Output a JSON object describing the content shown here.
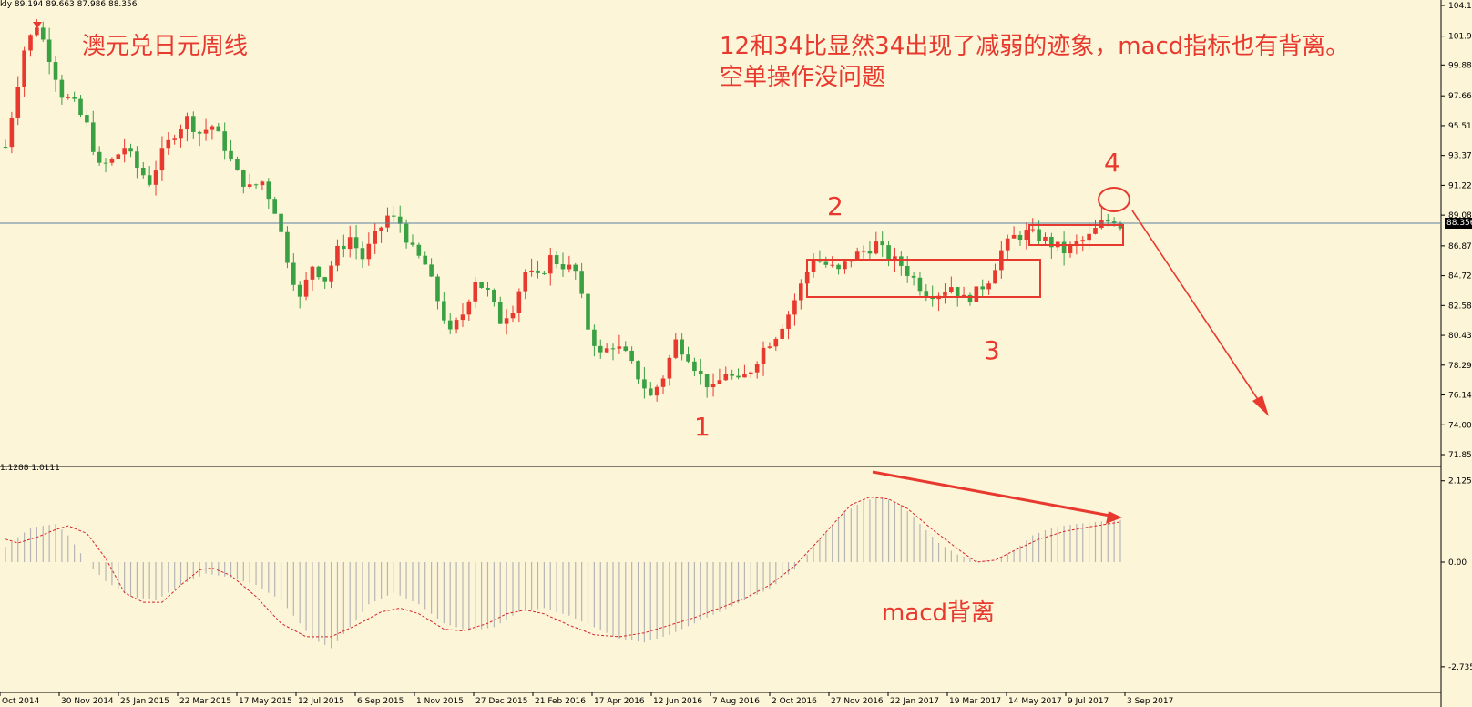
{
  "header": {
    "symbol_suffix": "kly",
    "ohlc": "89.194 89.663 87.986 88.356"
  },
  "annotations": {
    "title": "澳元兑日元周线",
    "note_line1": "12和34比显然34出现了减弱的迹象，macd指标也有背离。",
    "note_line2": "空单操作没问题",
    "macd_label": "macd背离",
    "waves": [
      "1",
      "2",
      "3",
      "4"
    ]
  },
  "macd_header": "1.1288 1.0111",
  "current_price_label": "88.356",
  "colors": {
    "background": "#fdf5d8",
    "up": "#e8392f",
    "down": "#3aa044",
    "annotation": "#e8392f",
    "macd_hist": "#b5b5b5",
    "signal": "#d6262a",
    "price_line": "#5a7f9a"
  },
  "chart_data": {
    "type": "candlestick",
    "ylim": [
      71.855,
      104.16
    ],
    "price_ticks": [
      "104.16",
      "101.955",
      "99.880",
      "97.660",
      "95.515",
      "93.370",
      "91.225",
      "89.080",
      "86.870",
      "84.725",
      "82.580",
      "80.435",
      "78.290",
      "76.145",
      "74.000",
      "71.855"
    ],
    "x_ticks": [
      "Oct 2014",
      "30 Nov 2014",
      "25 Jan 2015",
      "22 Mar 2015",
      "17 May 2015",
      "12 Jul 2015",
      "6 Sep 2015",
      "1 Nov 2015",
      "27 Dec 2015",
      "21 Feb 2016",
      "17 Apr 2016",
      "12 Jun 2016",
      "7 Aug 2016",
      "2 Oct 2016",
      "27 Nov 2016",
      "22 Jan 2017",
      "19 Mar 2017",
      "14 May 2017",
      "9 Jul 2017",
      "3 Sep 2017"
    ],
    "current_price": 88.356,
    "close_path": [
      [
        0,
        94.0
      ],
      [
        3,
        101.0
      ],
      [
        5,
        102.8
      ],
      [
        7,
        100.5
      ],
      [
        9,
        97.8
      ],
      [
        11,
        97.0
      ],
      [
        13,
        95.5
      ],
      [
        15,
        92.5
      ],
      [
        17,
        93.0
      ],
      [
        19,
        94.0
      ],
      [
        21,
        92.5
      ],
      [
        23,
        91.5
      ],
      [
        25,
        93.5
      ],
      [
        27,
        95.0
      ],
      [
        29,
        96.0
      ],
      [
        31,
        95.0
      ],
      [
        33,
        95.5
      ],
      [
        35,
        94.0
      ],
      [
        37,
        92.0
      ],
      [
        39,
        91.0
      ],
      [
        41,
        91.5
      ],
      [
        43,
        89.5
      ],
      [
        45,
        86.0
      ],
      [
        47,
        83.0
      ],
      [
        49,
        85.5
      ],
      [
        51,
        84.5
      ],
      [
        53,
        86.5
      ],
      [
        55,
        87.5
      ],
      [
        57,
        86.0
      ],
      [
        59,
        87.5
      ],
      [
        61,
        89.0
      ],
      [
        63,
        88.5
      ],
      [
        65,
        86.5
      ],
      [
        67,
        85.5
      ],
      [
        69,
        83.0
      ],
      [
        71,
        80.5
      ],
      [
        73,
        82.0
      ],
      [
        75,
        84.5
      ],
      [
        77,
        83.5
      ],
      [
        79,
        81.5
      ],
      [
        81,
        82.5
      ],
      [
        83,
        85.0
      ],
      [
        85,
        84.5
      ],
      [
        87,
        86.0
      ],
      [
        89,
        85.5
      ],
      [
        91,
        85.0
      ],
      [
        93,
        81.0
      ],
      [
        95,
        79.0
      ],
      [
        97,
        79.8
      ],
      [
        99,
        79.0
      ],
      [
        101,
        77.5
      ],
      [
        103,
        76.0
      ],
      [
        105,
        77.5
      ],
      [
        107,
        80.0
      ],
      [
        109,
        79.0
      ],
      [
        111,
        77.5
      ],
      [
        113,
        76.5
      ],
      [
        115,
        77.8
      ],
      [
        117,
        77.0
      ],
      [
        119,
        78.0
      ],
      [
        121,
        79.5
      ],
      [
        123,
        80.5
      ],
      [
        125,
        82.0
      ],
      [
        127,
        84.0
      ],
      [
        129,
        86.0
      ],
      [
        131,
        85.5
      ],
      [
        133,
        85.0
      ],
      [
        135,
        86.0
      ],
      [
        137,
        86.5
      ],
      [
        139,
        87.0
      ],
      [
        141,
        86.0
      ],
      [
        143,
        85.5
      ],
      [
        145,
        84.5
      ],
      [
        147,
        83.5
      ],
      [
        149,
        83.5
      ],
      [
        151,
        84.0
      ],
      [
        153,
        83.0
      ],
      [
        155,
        83.5
      ],
      [
        157,
        84.5
      ],
      [
        159,
        86.5
      ],
      [
        161,
        87.5
      ],
      [
        163,
        87.8
      ],
      [
        165,
        87.5
      ],
      [
        167,
        87.0
      ],
      [
        169,
        86.5
      ],
      [
        171,
        87.0
      ],
      [
        173,
        87.5
      ],
      [
        175,
        88.5
      ],
      [
        177,
        88.8
      ],
      [
        178,
        88.356
      ]
    ],
    "macd": {
      "histogram_path": [
        [
          0,
          0.4
        ],
        [
          4,
          0.9
        ],
        [
          8,
          1.0
        ],
        [
          10,
          0.7
        ],
        [
          13,
          0.0
        ],
        [
          16,
          -0.5
        ],
        [
          20,
          -0.9
        ],
        [
          24,
          -1.0
        ],
        [
          28,
          -0.6
        ],
        [
          32,
          -0.3
        ],
        [
          36,
          -0.4
        ],
        [
          40,
          -0.6
        ],
        [
          44,
          -1.0
        ],
        [
          46,
          -1.4
        ],
        [
          49,
          -2.0
        ],
        [
          52,
          -2.25
        ],
        [
          55,
          -1.7
        ],
        [
          58,
          -1.1
        ],
        [
          62,
          -0.8
        ],
        [
          66,
          -1.1
        ],
        [
          70,
          -1.6
        ],
        [
          74,
          -1.8
        ],
        [
          78,
          -1.7
        ],
        [
          82,
          -1.3
        ],
        [
          86,
          -1.2
        ],
        [
          90,
          -1.4
        ],
        [
          94,
          -1.7
        ],
        [
          98,
          -2.0
        ],
        [
          102,
          -2.1
        ],
        [
          106,
          -1.9
        ],
        [
          110,
          -1.6
        ],
        [
          114,
          -1.3
        ],
        [
          118,
          -1.0
        ],
        [
          122,
          -0.7
        ],
        [
          126,
          -0.2
        ],
        [
          130,
          0.6
        ],
        [
          134,
          1.3
        ],
        [
          137,
          1.6
        ],
        [
          140,
          1.7
        ],
        [
          143,
          1.5
        ],
        [
          146,
          1.0
        ],
        [
          149,
          0.5
        ],
        [
          152,
          0.2
        ],
        [
          155,
          0.05
        ],
        [
          158,
          0.0
        ],
        [
          161,
          0.3
        ],
        [
          164,
          0.7
        ],
        [
          167,
          0.9
        ],
        [
          171,
          1.0
        ],
        [
          174,
          1.05
        ],
        [
          178,
          1.1
        ]
      ],
      "signal_path": [
        [
          0,
          0.6
        ],
        [
          2,
          0.5
        ],
        [
          5,
          0.65
        ],
        [
          8,
          0.85
        ],
        [
          10,
          0.95
        ],
        [
          13,
          0.75
        ],
        [
          16,
          0.1
        ],
        [
          19,
          -0.8
        ],
        [
          22,
          -1.05
        ],
        [
          25,
          -1.05
        ],
        [
          28,
          -0.6
        ],
        [
          31,
          -0.2
        ],
        [
          33,
          -0.15
        ],
        [
          36,
          -0.35
        ],
        [
          40,
          -0.9
        ],
        [
          44,
          -1.6
        ],
        [
          48,
          -1.95
        ],
        [
          52,
          -1.95
        ],
        [
          56,
          -1.65
        ],
        [
          60,
          -1.3
        ],
        [
          63,
          -1.2
        ],
        [
          66,
          -1.35
        ],
        [
          70,
          -1.75
        ],
        [
          73,
          -1.8
        ],
        [
          77,
          -1.6
        ],
        [
          80,
          -1.35
        ],
        [
          83,
          -1.25
        ],
        [
          86,
          -1.35
        ],
        [
          90,
          -1.65
        ],
        [
          94,
          -1.9
        ],
        [
          98,
          -1.95
        ],
        [
          102,
          -1.85
        ],
        [
          106,
          -1.65
        ],
        [
          110,
          -1.45
        ],
        [
          114,
          -1.2
        ],
        [
          118,
          -0.95
        ],
        [
          122,
          -0.6
        ],
        [
          126,
          -0.1
        ],
        [
          130,
          0.6
        ],
        [
          133,
          1.15
        ],
        [
          135,
          1.5
        ],
        [
          138,
          1.7
        ],
        [
          141,
          1.65
        ],
        [
          144,
          1.4
        ],
        [
          148,
          0.85
        ],
        [
          152,
          0.35
        ],
        [
          155,
          0.0
        ],
        [
          158,
          0.05
        ],
        [
          161,
          0.3
        ],
        [
          165,
          0.6
        ],
        [
          169,
          0.8
        ],
        [
          173,
          0.92
        ],
        [
          178,
          1.05
        ]
      ],
      "zero_label": "0.00",
      "top_label": "2.1252",
      "bottom_label": "-2.7351"
    }
  }
}
